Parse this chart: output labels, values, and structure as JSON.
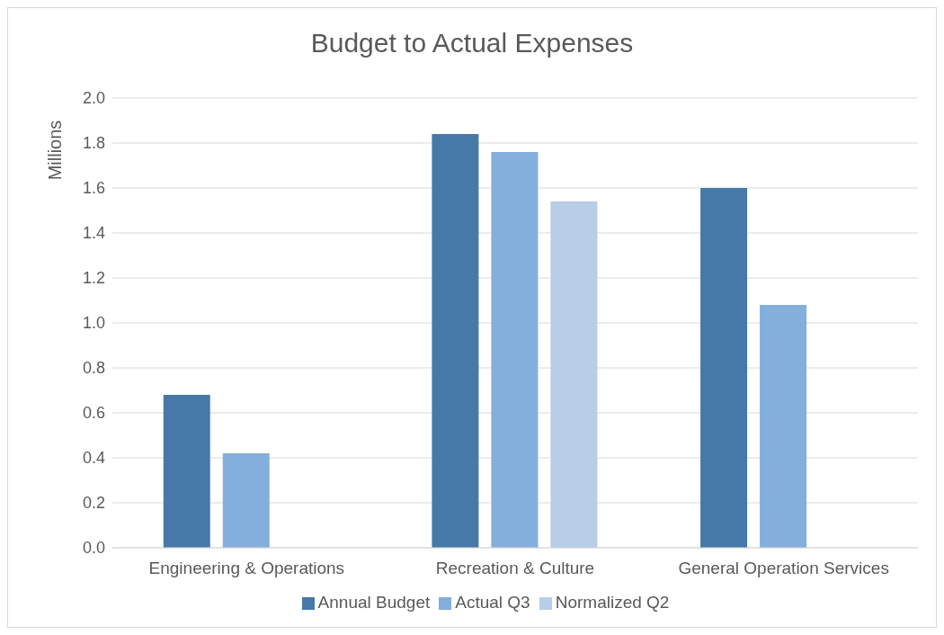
{
  "chart_data": {
    "type": "bar",
    "title": "Budget to Actual Expenses",
    "ylabel": "Millions",
    "categories": [
      "Engineering & Operations",
      "Recreation & Culture",
      "General Operation Services"
    ],
    "series": [
      {
        "name": "Annual Budget",
        "color": "#4679a8",
        "values": [
          0.68,
          1.84,
          1.6
        ]
      },
      {
        "name": "Actual Q3",
        "color": "#84aedb",
        "values": [
          0.42,
          1.76,
          1.08
        ]
      },
      {
        "name": "Normalized Q2",
        "color": "#b8cde6",
        "values": [
          null,
          1.54,
          null
        ]
      }
    ],
    "ylim": [
      0,
      2
    ],
    "yticks": [
      {
        "value": 0,
        "label": "0.0"
      },
      0.2,
      0.4,
      0.6,
      0.8,
      {
        "value": 1,
        "label": "1.0"
      },
      1.2,
      1.4,
      1.6,
      1.8,
      {
        "value": 2,
        "label": "2.0"
      }
    ],
    "grid": "y",
    "legend": "bottom"
  }
}
